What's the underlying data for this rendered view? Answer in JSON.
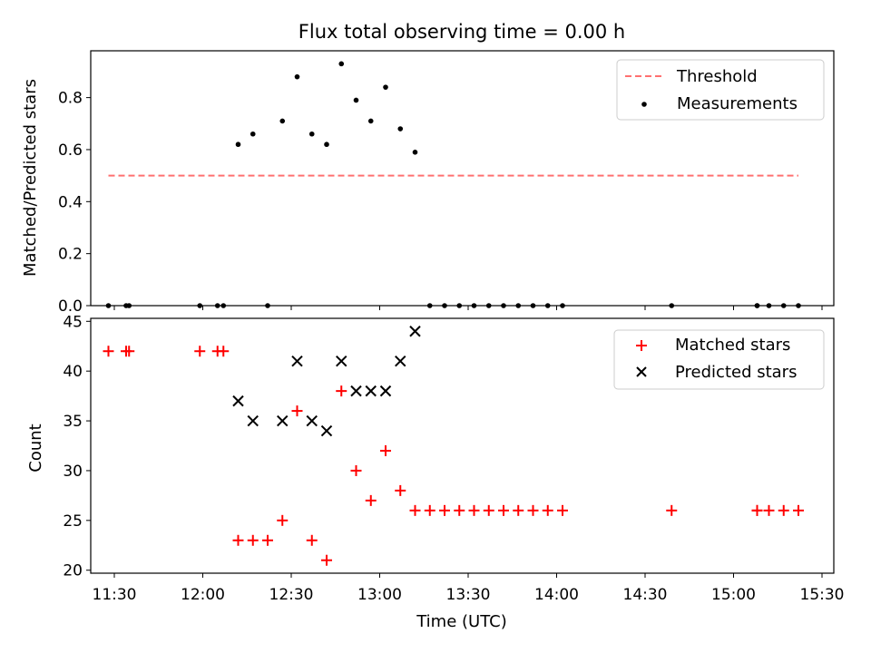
{
  "chart_data": [
    {
      "type": "scatter",
      "title": "Flux total observing time = 0.00 h",
      "xlabel": "",
      "ylabel": "Matched/Predicted stars",
      "xlim": [
        "11:22",
        "15:34"
      ],
      "ylim": [
        0,
        0.98
      ],
      "yticks": [
        0.0,
        0.2,
        0.4,
        0.6,
        0.8
      ],
      "ytick_labels": [
        "0.0",
        "0.2",
        "0.4",
        "0.6",
        "0.8"
      ],
      "legend": "top-right",
      "series": [
        {
          "name": "Threshold",
          "kind": "line",
          "style": "dashed",
          "color": "#ff7070",
          "x": [
            "11:28",
            "15:22"
          ],
          "y": [
            0.5,
            0.5
          ]
        },
        {
          "name": "Measurements",
          "kind": "scatter",
          "color": "#000000",
          "x": [
            "11:28",
            "11:34",
            "11:35",
            "11:59",
            "12:05",
            "12:07",
            "12:12",
            "12:17",
            "12:22",
            "12:27",
            "12:32",
            "12:37",
            "12:42",
            "12:47",
            "12:52",
            "12:57",
            "13:02",
            "13:07",
            "13:12",
            "13:17",
            "13:22",
            "13:27",
            "13:32",
            "13:37",
            "13:42",
            "13:47",
            "13:52",
            "13:57",
            "14:02",
            "14:39",
            "15:08",
            "15:08",
            "15:12",
            "15:17",
            "15:22"
          ],
          "y": [
            0,
            0,
            0,
            0,
            0,
            0,
            0.62,
            0.66,
            0,
            0.71,
            0.88,
            0.66,
            0.62,
            0.93,
            0.79,
            0.71,
            0.84,
            0.68,
            0.59,
            0,
            0,
            0,
            0,
            0,
            0,
            0,
            0,
            0,
            0,
            0,
            0,
            0,
            0,
            0,
            0
          ]
        }
      ]
    },
    {
      "type": "scatter",
      "title": "",
      "xlabel": "Time (UTC)",
      "ylabel": "Count",
      "xlim": [
        "11:22",
        "15:34"
      ],
      "ylim": [
        19.7,
        45.3
      ],
      "yticks": [
        20,
        25,
        30,
        35,
        40,
        45
      ],
      "ytick_labels": [
        "20",
        "25",
        "30",
        "35",
        "40",
        "45"
      ],
      "xticks": [
        "11:30",
        "12:00",
        "12:30",
        "13:00",
        "13:30",
        "14:00",
        "14:30",
        "15:00",
        "15:30"
      ],
      "xtick_labels": [
        "11:30",
        "12:00",
        "12:30",
        "13:00",
        "13:30",
        "14:00",
        "14:30",
        "15:00",
        "15:30"
      ],
      "legend": "top-right",
      "series": [
        {
          "name": "Matched stars",
          "marker": "+",
          "color": "#ff0000",
          "x": [
            "11:28",
            "11:34",
            "11:35",
            "11:59",
            "12:05",
            "12:07",
            "12:12",
            "12:17",
            "12:22",
            "12:27",
            "12:32",
            "12:37",
            "12:42",
            "12:47",
            "12:52",
            "12:57",
            "13:02",
            "13:07",
            "13:12",
            "13:17",
            "13:22",
            "13:27",
            "13:32",
            "13:37",
            "13:42",
            "13:47",
            "13:52",
            "13:57",
            "14:02",
            "14:39",
            "15:08",
            "15:08",
            "15:12",
            "15:17",
            "15:22"
          ],
          "y": [
            42,
            42,
            42,
            42,
            42,
            42,
            23,
            23,
            23,
            25,
            36,
            23,
            21,
            38,
            30,
            27,
            32,
            28,
            26,
            26,
            26,
            26,
            26,
            26,
            26,
            26,
            26,
            26,
            26,
            26,
            26,
            26,
            26,
            26,
            26
          ]
        },
        {
          "name": "Predicted stars",
          "marker": "x",
          "color": "#000000",
          "x": [
            "12:12",
            "12:17",
            "12:27",
            "12:32",
            "12:37",
            "12:42",
            "12:47",
            "12:52",
            "12:57",
            "13:02",
            "13:07",
            "13:12"
          ],
          "y": [
            37,
            35,
            35,
            41,
            35,
            34,
            41,
            38,
            38,
            38,
            41,
            44
          ]
        }
      ]
    }
  ]
}
